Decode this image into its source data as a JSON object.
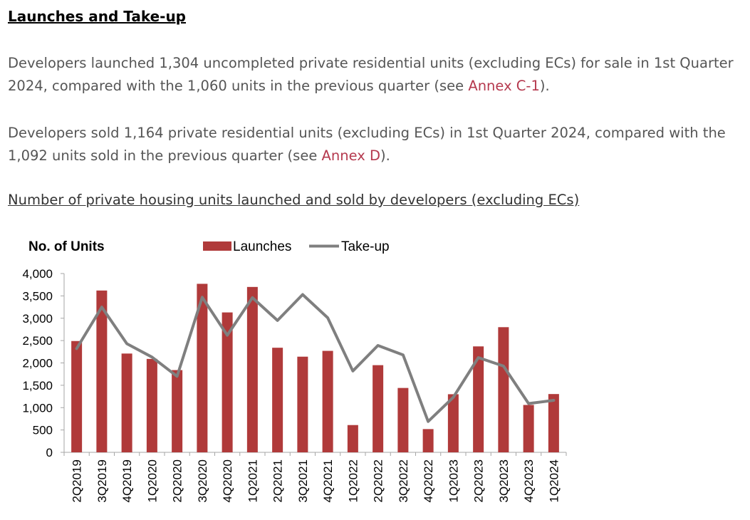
{
  "heading": "Launches and Take-up",
  "paragraph1": {
    "text": "Developers launched 1,304 uncompleted private residential units (excluding ECs) for sale in 1st Quarter 2024, compared with the 1,060 units in the previous quarter (see ",
    "link": "Annex C-1",
    "after": ")."
  },
  "paragraph2": {
    "text": "Developers sold 1,164 private residential units (excluding ECs) in 1st Quarter 2024, compared with the 1,092 units sold in the previous quarter (see ",
    "link": "Annex D",
    "after": ")."
  },
  "chart_caption": "Number of private housing units launched and sold by developers (excluding ECs)",
  "colors": {
    "bar": "#b03a3a",
    "line": "#7f7f7f",
    "link": "#b5394e"
  },
  "chart_data": {
    "type": "bar",
    "ylabel": "No. of Units",
    "ylim": [
      0,
      4000
    ],
    "yticks": [
      "4,000",
      "3,500",
      "3,000",
      "2,500",
      "2,000",
      "1,500",
      "1,000",
      "500",
      "0"
    ],
    "legend_position": "top",
    "categories": [
      "2Q2019",
      "3Q2019",
      "4Q2019",
      "1Q2020",
      "2Q2020",
      "3Q2020",
      "4Q2020",
      "1Q2021",
      "2Q2021",
      "3Q2021",
      "4Q2021",
      "1Q2022",
      "2Q2022",
      "3Q2022",
      "4Q2022",
      "1Q2023",
      "2Q2023",
      "3Q2023",
      "4Q2023",
      "1Q2024"
    ],
    "series": [
      {
        "name": "Launches",
        "type": "bar",
        "values": [
          2490,
          3620,
          2210,
          2090,
          1840,
          3770,
          3130,
          3700,
          2340,
          2140,
          2270,
          610,
          1950,
          1440,
          520,
          1300,
          2370,
          2800,
          1060,
          1304
        ]
      },
      {
        "name": "Take-up",
        "type": "line",
        "values": [
          2320,
          3250,
          2430,
          2130,
          1700,
          3470,
          2620,
          3460,
          2950,
          3530,
          3010,
          1820,
          2390,
          2180,
          690,
          1230,
          2120,
          1930,
          1092,
          1164
        ]
      }
    ]
  }
}
